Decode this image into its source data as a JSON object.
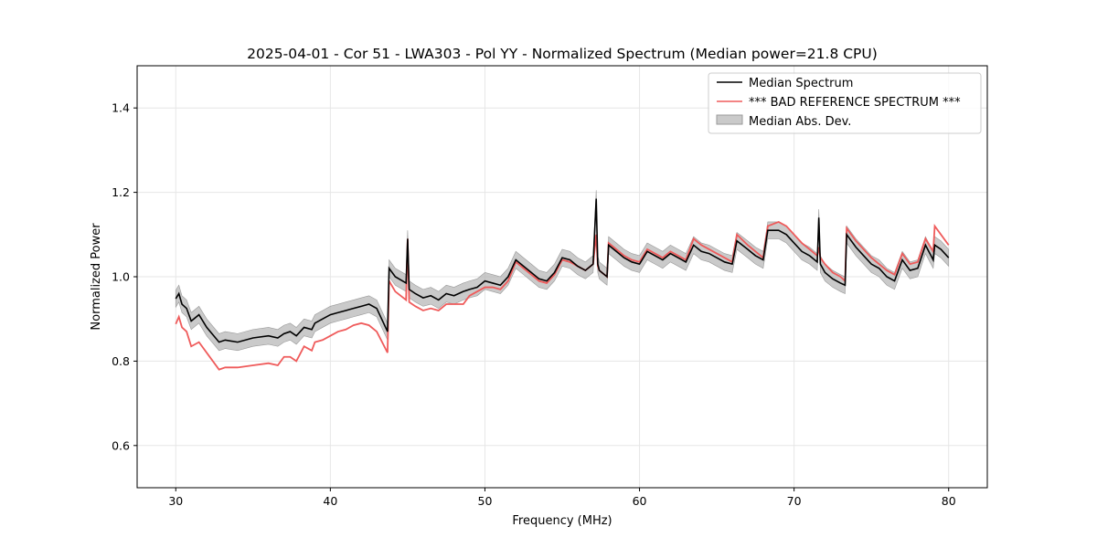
{
  "chart_data": {
    "type": "line",
    "title": "2025-04-01 - Cor 51 - LWA303 - Pol YY - Normalized Spectrum (Median power=21.8 CPU)",
    "xlabel": "Frequency (MHz)",
    "ylabel": "Normalized Power",
    "xlim": [
      27.5,
      82.5
    ],
    "ylim": [
      0.5,
      1.5
    ],
    "xticks": [
      30,
      40,
      50,
      60,
      70,
      80
    ],
    "yticks": [
      0.6,
      0.8,
      1.0,
      1.2,
      1.4
    ],
    "xtick_labels": [
      "30",
      "40",
      "50",
      "60",
      "70",
      "80"
    ],
    "ytick_labels": [
      "0.6",
      "0.8",
      "1.0",
      "1.2",
      "1.4"
    ],
    "grid": true,
    "legend_position": "top-right",
    "legend": [
      "Median Spectrum",
      "*** BAD REFERENCE SPECTRUM ***",
      "Median Abs. Dev."
    ],
    "colors": {
      "median": "#000000",
      "reference": "#ef5b5b",
      "mad": "#b3b3b3"
    },
    "series": [
      {
        "name": "Median Spectrum",
        "x": [
          30.0,
          30.2,
          30.4,
          30.7,
          31.0,
          31.5,
          32.0,
          32.8,
          33.2,
          34.0,
          35.0,
          36.0,
          36.6,
          37.0,
          37.4,
          37.8,
          38.3,
          38.8,
          39.0,
          39.5,
          40.0,
          40.5,
          41.0,
          41.5,
          42.0,
          42.5,
          43.0,
          43.7,
          43.8,
          44.2,
          44.9,
          45.0,
          45.1,
          45.5,
          46.0,
          46.5,
          47.0,
          47.5,
          48.0,
          48.6,
          49.0,
          49.5,
          50.0,
          50.5,
          51.0,
          51.5,
          52.0,
          52.5,
          53.0,
          53.5,
          54.0,
          54.5,
          55.0,
          55.5,
          56.0,
          56.5,
          57.0,
          57.2,
          57.3,
          57.4,
          57.9,
          58.0,
          58.5,
          59.0,
          59.5,
          60.0,
          60.5,
          61.0,
          61.5,
          62.0,
          62.5,
          63.0,
          63.5,
          64.0,
          64.5,
          65.0,
          65.5,
          66.0,
          66.3,
          67.0,
          67.5,
          68.0,
          68.3,
          69.0,
          69.5,
          70.0,
          70.5,
          71.0,
          71.5,
          71.6,
          71.7,
          72.0,
          72.5,
          73.0,
          73.3,
          73.4,
          74.0,
          74.5,
          75.0,
          75.5,
          76.0,
          76.5,
          77.0,
          77.5,
          78.0,
          78.5,
          79.0,
          79.1,
          79.5,
          80.0
        ],
        "values": [
          0.948,
          0.96,
          0.935,
          0.925,
          0.895,
          0.91,
          0.88,
          0.845,
          0.85,
          0.845,
          0.855,
          0.86,
          0.855,
          0.865,
          0.87,
          0.86,
          0.88,
          0.875,
          0.89,
          0.9,
          0.91,
          0.915,
          0.92,
          0.925,
          0.93,
          0.935,
          0.925,
          0.87,
          1.02,
          1.0,
          0.985,
          1.09,
          0.97,
          0.96,
          0.95,
          0.955,
          0.945,
          0.96,
          0.955,
          0.965,
          0.97,
          0.975,
          0.99,
          0.985,
          0.98,
          1.0,
          1.04,
          1.025,
          1.01,
          0.995,
          0.99,
          1.01,
          1.045,
          1.04,
          1.025,
          1.015,
          1.03,
          1.185,
          1.03,
          1.015,
          1.0,
          1.075,
          1.06,
          1.045,
          1.035,
          1.03,
          1.06,
          1.05,
          1.04,
          1.055,
          1.045,
          1.035,
          1.075,
          1.06,
          1.055,
          1.045,
          1.035,
          1.03,
          1.085,
          1.065,
          1.05,
          1.04,
          1.11,
          1.11,
          1.1,
          1.08,
          1.06,
          1.05,
          1.035,
          1.14,
          1.03,
          1.01,
          0.995,
          0.985,
          0.98,
          1.1,
          1.07,
          1.05,
          1.03,
          1.02,
          1.0,
          0.99,
          1.04,
          1.015,
          1.02,
          1.075,
          1.04,
          1.075,
          1.065,
          1.045
        ]
      },
      {
        "name": "*** BAD REFERENCE SPECTRUM ***",
        "x": [
          30.0,
          30.2,
          30.4,
          30.7,
          31.0,
          31.5,
          32.0,
          32.8,
          33.2,
          34.0,
          35.0,
          36.0,
          36.6,
          37.0,
          37.4,
          37.8,
          38.3,
          38.8,
          39.0,
          39.5,
          40.0,
          40.5,
          41.0,
          41.5,
          42.0,
          42.5,
          43.0,
          43.7,
          43.8,
          44.2,
          44.9,
          45.0,
          45.1,
          45.5,
          46.0,
          46.5,
          47.0,
          47.5,
          48.0,
          48.6,
          49.0,
          49.5,
          50.0,
          50.5,
          51.0,
          51.5,
          52.0,
          52.5,
          53.0,
          53.5,
          54.0,
          54.5,
          55.0,
          55.5,
          56.0,
          56.5,
          57.0,
          57.2,
          57.3,
          57.4,
          57.9,
          58.0,
          58.5,
          59.0,
          59.5,
          60.0,
          60.5,
          61.0,
          61.5,
          62.0,
          62.5,
          63.0,
          63.5,
          64.0,
          64.5,
          65.0,
          65.5,
          66.0,
          66.3,
          67.0,
          67.5,
          68.0,
          68.3,
          69.0,
          69.5,
          70.0,
          70.5,
          71.0,
          71.5,
          71.6,
          71.7,
          72.0,
          72.5,
          73.0,
          73.3,
          73.4,
          74.0,
          74.5,
          75.0,
          75.5,
          76.0,
          76.5,
          77.0,
          77.5,
          78.0,
          78.5,
          79.0,
          79.1,
          79.5,
          80.0
        ],
        "values": [
          0.888,
          0.905,
          0.88,
          0.87,
          0.835,
          0.845,
          0.82,
          0.78,
          0.785,
          0.785,
          0.79,
          0.795,
          0.79,
          0.81,
          0.81,
          0.8,
          0.835,
          0.825,
          0.845,
          0.85,
          0.86,
          0.87,
          0.875,
          0.885,
          0.89,
          0.885,
          0.87,
          0.82,
          0.99,
          0.965,
          0.945,
          1.09,
          0.94,
          0.93,
          0.92,
          0.925,
          0.92,
          0.935,
          0.935,
          0.935,
          0.955,
          0.965,
          0.975,
          0.975,
          0.97,
          0.99,
          1.035,
          1.02,
          1.005,
          0.99,
          0.985,
          1.005,
          1.04,
          1.035,
          1.025,
          1.015,
          1.03,
          1.1,
          1.025,
          1.015,
          1.0,
          1.08,
          1.065,
          1.05,
          1.04,
          1.035,
          1.065,
          1.055,
          1.045,
          1.06,
          1.05,
          1.04,
          1.09,
          1.075,
          1.065,
          1.055,
          1.045,
          1.035,
          1.1,
          1.075,
          1.06,
          1.045,
          1.12,
          1.13,
          1.12,
          1.1,
          1.08,
          1.065,
          1.05,
          1.07,
          1.045,
          1.03,
          1.01,
          1.0,
          0.99,
          1.115,
          1.085,
          1.065,
          1.045,
          1.03,
          1.015,
          1.005,
          1.055,
          1.03,
          1.035,
          1.09,
          1.06,
          1.12,
          1.1,
          1.075
        ]
      }
    ],
    "band": {
      "name": "Median Abs. Dev.",
      "half_width": 0.02
    }
  }
}
